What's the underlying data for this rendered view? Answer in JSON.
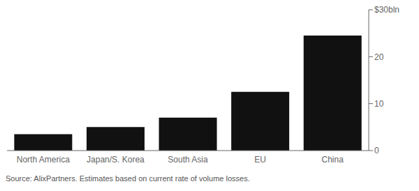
{
  "chart_data": {
    "type": "bar",
    "categories": [
      "North America",
      "Japan/S. Korea",
      "South Asia",
      "EU",
      "China"
    ],
    "values": [
      3.5,
      5.0,
      7.0,
      12.5,
      24.5
    ],
    "color": "#111111",
    "ylim": [
      0,
      30
    ],
    "yticks": [
      0,
      10,
      20,
      {
        "value": 30,
        "label": "$30bln"
      }
    ],
    "grid": false,
    "annotations": [
      "Source: AlixPartners. Estimates based on current rate of volume losses."
    ]
  }
}
